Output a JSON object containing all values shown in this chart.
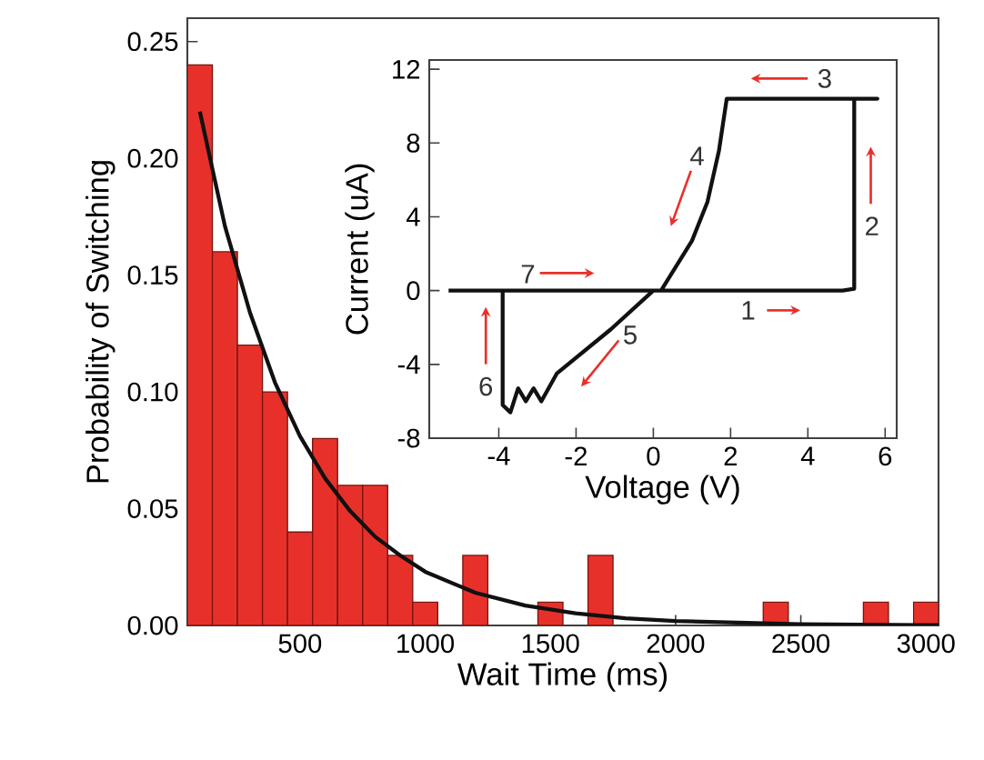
{
  "chart_data": [
    {
      "type": "histogram",
      "xlabel": "Wait Time (ms)",
      "ylabel": "Probability of Switching",
      "bins": [
        50,
        150,
        250,
        350,
        450,
        550,
        650,
        750,
        850,
        950,
        1050,
        1150,
        1250,
        1350,
        1450,
        1550,
        1650,
        1750,
        1850,
        1950,
        2050,
        2150,
        2250,
        2350,
        2450,
        2550,
        2650,
        2750,
        2850,
        2950,
        3050
      ],
      "series": [
        {
          "type": "histogram",
          "color": "#e8302a",
          "values": [
            0.24,
            0.16,
            0.12,
            0.1,
            0.04,
            0.08,
            0.06,
            0.06,
            0.03,
            0.01,
            0,
            0.03,
            0,
            0,
            0.01,
            0,
            0.03,
            0,
            0,
            0,
            0,
            0,
            0,
            0.01,
            0,
            0,
            0,
            0.01,
            0,
            0.01
          ]
        },
        {
          "type": "line",
          "color": "#111111",
          "x": [
            100,
            200,
            300,
            400,
            500,
            600,
            700,
            800,
            900,
            1000,
            1200,
            1400,
            1600,
            1800,
            2000,
            2500,
            3050
          ],
          "values": [
            0.22,
            0.171,
            0.134,
            0.104,
            0.081,
            0.063,
            0.049,
            0.038,
            0.03,
            0.023,
            0.014,
            0.0085,
            0.0052,
            0.0031,
            0.0019,
            0.0005,
            0.0001
          ]
        }
      ],
      "xlim": [
        50,
        3050
      ],
      "ylim": [
        0,
        0.26
      ],
      "xticks": [
        500,
        1000,
        1500,
        2000,
        2500,
        3000
      ],
      "yticks": [
        {
          "value": 0,
          "label": "0.00"
        },
        {
          "value": 0.05,
          "label": "0.05"
        },
        {
          "value": 0.1,
          "label": "0.10"
        },
        {
          "value": 0.15,
          "label": "0.15"
        },
        {
          "value": 0.2,
          "label": "0.20"
        },
        {
          "value": 0.25,
          "label": "0.25"
        }
      ],
      "grid": false
    },
    {
      "type": "line",
      "xlabel": "Voltage (V)",
      "ylabel": "Current (uA)",
      "color": "#111111",
      "x": [
        -5.3,
        4.9,
        5.2,
        5.2,
        5.8,
        1.9,
        1.7,
        1.4,
        1.0,
        0.2,
        0,
        -1.1,
        -2.5,
        -2.9,
        -3.1,
        -3.3,
        -3.5,
        -3.7,
        -3.9,
        -3.9
      ],
      "values": [
        0,
        0,
        0.1,
        10.4,
        10.4,
        10.4,
        7.6,
        4.8,
        2.7,
        0,
        0,
        -2.1,
        -4.5,
        -6.0,
        -5.3,
        -6.0,
        -5.3,
        -6.6,
        -6.2,
        0
      ],
      "xlim": [
        -5.8,
        6.3
      ],
      "ylim": [
        -8,
        12.5
      ],
      "xticks": [
        -4,
        -2,
        0,
        2,
        4,
        6
      ],
      "yticks": [
        -8,
        -4,
        0,
        4,
        8,
        12
      ],
      "annotations": [
        "1",
        "2",
        "3",
        "4",
        "5",
        "6",
        "7"
      ],
      "grid": false
    }
  ]
}
